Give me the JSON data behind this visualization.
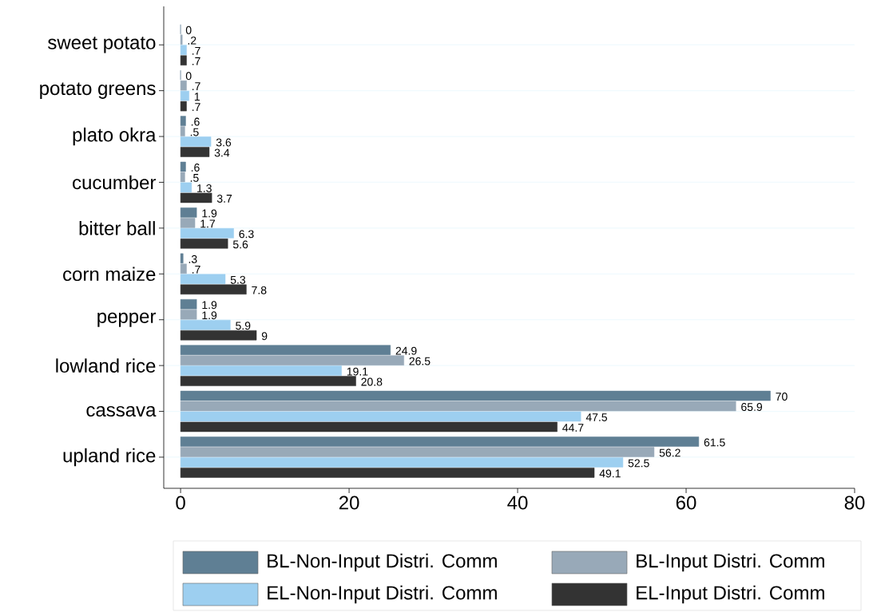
{
  "chart_data": {
    "type": "bar",
    "orientation": "horizontal",
    "categories": [
      "sweet potato",
      "potato greens",
      "plato okra",
      "cucumber",
      "bitter ball",
      "corn maize",
      "pepper",
      "lowland rice",
      "cassava",
      "upland rice"
    ],
    "series": [
      {
        "name": "BL-Non-Input Distri. Comm",
        "color": "#5f7f94",
        "values": [
          0,
          0,
          0.6,
          0.6,
          1.9,
          0.3,
          1.9,
          24.9,
          70,
          61.5
        ],
        "value_labels": [
          "0",
          "0",
          ".6",
          ".6",
          "1.9",
          ".3",
          "1.9",
          "24.9",
          "70",
          "61.5"
        ]
      },
      {
        "name": "BL-Input Distri. Comm",
        "color": "#98a9b8",
        "values": [
          0.2,
          0.7,
          0.5,
          0.5,
          1.7,
          0.7,
          1.9,
          26.5,
          65.9,
          56.2
        ],
        "value_labels": [
          ".2",
          ".7",
          ".5",
          ".5",
          "1.7",
          ".7",
          "1.9",
          "26.5",
          "65.9",
          "56.2"
        ]
      },
      {
        "name": "EL-Non-Input Distri. Comm",
        "color": "#9dcff0",
        "values": [
          0.7,
          1,
          3.6,
          1.3,
          6.3,
          5.3,
          5.9,
          19.1,
          47.5,
          52.5
        ],
        "value_labels": [
          ".7",
          "1",
          "3.6",
          "1.3",
          "6.3",
          "5.3",
          "5.9",
          "19.1",
          "47.5",
          "52.5"
        ]
      },
      {
        "name": "EL-Input Distri. Comm",
        "color": "#333333",
        "values": [
          0.7,
          0.7,
          3.4,
          3.7,
          5.6,
          7.8,
          9,
          20.8,
          44.7,
          49.1
        ],
        "value_labels": [
          ".7",
          ".7",
          "3.4",
          "3.7",
          "5.6",
          "7.8",
          "9",
          "20.8",
          "44.7",
          "49.1"
        ]
      }
    ],
    "xlim": [
      -2,
      80
    ],
    "xticks": [
      0,
      20,
      40,
      60,
      80
    ],
    "grid": "y",
    "legend": "bottom"
  }
}
